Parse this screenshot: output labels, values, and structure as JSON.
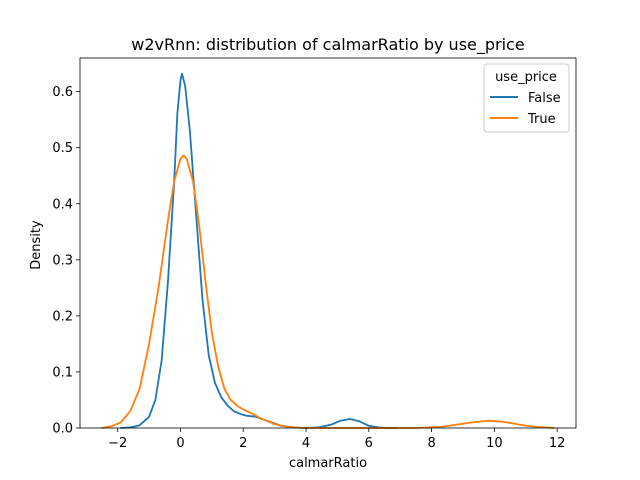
{
  "chart_data": {
    "type": "line",
    "title": "w2vRnn: distribution of calmarRatio by use_price",
    "xlabel": "calmarRatio",
    "ylabel": "Density",
    "xlim": [
      -3.2,
      12.6
    ],
    "ylim": [
      0,
      0.66
    ],
    "xticks": [
      -2,
      0,
      2,
      4,
      6,
      8,
      10,
      12
    ],
    "xtick_labels": [
      "−2",
      "0",
      "2",
      "4",
      "6",
      "8",
      "10",
      "12"
    ],
    "yticks": [
      0.0,
      0.1,
      0.2,
      0.3,
      0.4,
      0.5,
      0.6
    ],
    "ytick_labels": [
      "0.0",
      "0.1",
      "0.2",
      "0.3",
      "0.4",
      "0.5",
      "0.6"
    ],
    "grid": false,
    "legend": {
      "title": "use_price",
      "placement": "upper right"
    },
    "series": [
      {
        "name": "False",
        "color": "#1f77b4",
        "x": [
          -1.9,
          -1.6,
          -1.3,
          -1.0,
          -0.8,
          -0.6,
          -0.4,
          -0.2,
          -0.1,
          0.0,
          0.05,
          0.15,
          0.3,
          0.5,
          0.7,
          0.9,
          1.1,
          1.3,
          1.5,
          1.7,
          1.9,
          2.1,
          2.4,
          2.8,
          3.2,
          3.6,
          4.0,
          4.4,
          4.8,
          5.1,
          5.4,
          5.7,
          6.0,
          6.3,
          6.6,
          6.9
        ],
        "y": [
          0.0,
          0.001,
          0.005,
          0.02,
          0.05,
          0.12,
          0.26,
          0.44,
          0.56,
          0.62,
          0.632,
          0.61,
          0.53,
          0.38,
          0.23,
          0.13,
          0.08,
          0.055,
          0.04,
          0.03,
          0.025,
          0.022,
          0.02,
          0.012,
          0.004,
          0.001,
          0.0,
          0.001,
          0.006,
          0.013,
          0.016,
          0.012,
          0.004,
          0.001,
          0.0,
          0.0
        ]
      },
      {
        "name": "True",
        "color": "#ff7f0e",
        "x": [
          -2.5,
          -2.2,
          -1.9,
          -1.6,
          -1.3,
          -1.0,
          -0.7,
          -0.4,
          -0.2,
          0.0,
          0.1,
          0.2,
          0.4,
          0.6,
          0.8,
          1.0,
          1.2,
          1.4,
          1.6,
          1.8,
          2.0,
          2.3,
          2.6,
          3.0,
          3.4,
          3.8,
          4.5,
          6.0,
          7.5,
          8.3,
          8.8,
          9.3,
          9.8,
          10.3,
          10.8,
          11.3,
          11.9
        ],
        "y": [
          0.0,
          0.003,
          0.01,
          0.03,
          0.07,
          0.15,
          0.25,
          0.37,
          0.44,
          0.48,
          0.486,
          0.48,
          0.44,
          0.36,
          0.26,
          0.17,
          0.11,
          0.07,
          0.05,
          0.04,
          0.033,
          0.025,
          0.016,
          0.007,
          0.002,
          0.0005,
          0.0,
          0.0,
          0.0,
          0.002,
          0.006,
          0.01,
          0.013,
          0.011,
          0.006,
          0.002,
          0.0
        ]
      }
    ]
  }
}
